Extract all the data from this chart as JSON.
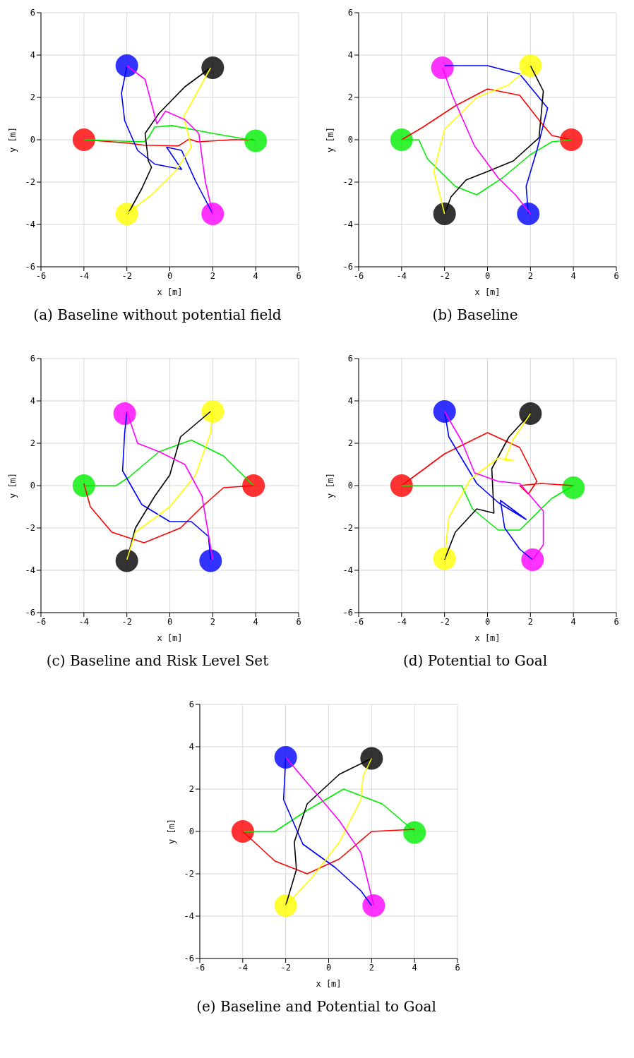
{
  "chart_data": [
    {
      "type": "line",
      "title": "(a) Baseline without potential field",
      "xlabel": "x [m]",
      "ylabel": "y [m]",
      "xlim": [
        -6,
        6
      ],
      "ylim": [
        -6,
        6
      ],
      "xticks": [
        -6,
        -4,
        -2,
        0,
        2,
        4,
        6
      ],
      "yticks": [
        -6,
        -4,
        -2,
        0,
        2,
        4,
        6
      ],
      "grid": true,
      "series": [
        {
          "color": "#ff0000",
          "x": [
            -4,
            -2,
            -1.2,
            0.4,
            0.9,
            1.3,
            2.9,
            3.9
          ],
          "values": [
            0,
            -0.15,
            -0.26,
            -0.29,
            0.03,
            -0.1,
            0,
            0
          ]
        },
        {
          "color": "#00ee00",
          "x": [
            4,
            2,
            0.1,
            -0.7,
            -1,
            -1.2,
            -4
          ],
          "values": [
            -0.05,
            0.3,
            0.67,
            0.6,
            0.1,
            -0.1,
            0
          ]
        },
        {
          "color": "#0000ff",
          "x": [
            -2,
            -2.25,
            -2.1,
            -1.5,
            -0.7,
            0.55,
            -0.15,
            0.55,
            1.2,
            2
          ],
          "values": [
            3.45,
            2.2,
            0.9,
            -0.5,
            -1.15,
            -1.4,
            -0.35,
            -0.5,
            -1.95,
            -3.5
          ]
        },
        {
          "color": "#000000",
          "x": [
            1.9,
            0.7,
            -0.5,
            -1.15,
            -1,
            -0.85,
            -1.3,
            -1.95
          ],
          "values": [
            3.4,
            2.5,
            1.25,
            0.3,
            -1,
            -1.3,
            -2.3,
            -3.5
          ]
        },
        {
          "color": "#ffff00",
          "x": [
            -2,
            -0.85,
            0.25,
            1,
            0.65,
            0.9,
            1.9
          ],
          "values": [
            -3.5,
            -2.6,
            -1.5,
            -0.35,
            1.1,
            1.55,
            3.4
          ]
        },
        {
          "color": "#ff00ff",
          "x": [
            -2,
            -1.15,
            -0.6,
            -0.2,
            0.7,
            1.35,
            1.65,
            2
          ],
          "values": [
            3.5,
            2.85,
            0.75,
            1.35,
            0.95,
            0.3,
            -1.95,
            -3.5
          ]
        },
        {
          "type": "scatter",
          "marker": "circle",
          "x": [
            -2,
            2,
            -4,
            4,
            -2,
            2
          ],
          "values": [
            3.5,
            3.4,
            0,
            -0.05,
            -3.5,
            -3.5
          ],
          "colors": [
            "#0000ff",
            "#000000",
            "#ff0000",
            "#00ee00",
            "#ffff00",
            "#ff00ff"
          ]
        }
      ]
    },
    {
      "type": "line",
      "title": "(b) Baseline",
      "xlabel": "x [m]",
      "ylabel": "y [m]",
      "xlim": [
        -6,
        6
      ],
      "ylim": [
        -6,
        6
      ],
      "xticks": [
        -6,
        -4,
        -2,
        0,
        2,
        4,
        6
      ],
      "yticks": [
        -6,
        -4,
        -2,
        0,
        2,
        4,
        6
      ],
      "grid": true,
      "series": [
        {
          "color": "#ff0000",
          "x": [
            -4,
            -3,
            -1.5,
            0,
            1.5,
            2.5,
            3,
            3.9
          ],
          "values": [
            0,
            0.6,
            1.6,
            2.4,
            2.1,
            0.8,
            0.2,
            0
          ]
        },
        {
          "color": "#00ee00",
          "x": [
            3.9,
            3,
            2,
            0.7,
            -0.5,
            -1.5,
            -2.8,
            -3.2,
            -4
          ],
          "values": [
            0,
            -0.1,
            -0.7,
            -1.8,
            -2.6,
            -2.2,
            -0.9,
            0,
            0
          ]
        },
        {
          "color": "#0000ff",
          "x": [
            1.9,
            1.8,
            2.3,
            2.8,
            1.5,
            0,
            -2
          ],
          "values": [
            -3.5,
            -2.2,
            -0.5,
            1.5,
            3.1,
            3.5,
            3.5
          ]
        },
        {
          "color": "#000000",
          "x": [
            2,
            2.6,
            2.4,
            1.2,
            0,
            -1,
            -1.7,
            -2
          ],
          "values": [
            3.5,
            2.3,
            0.1,
            -1,
            -1.5,
            -1.9,
            -2.7,
            -3.5
          ]
        },
        {
          "color": "#ffff00",
          "x": [
            -2,
            -2.5,
            -2,
            -0.5,
            1,
            2
          ],
          "values": [
            -3.5,
            -1.5,
            0.5,
            2,
            2.6,
            3.5
          ]
        },
        {
          "color": "#ff00ff",
          "x": [
            -2.1,
            -1.6,
            -0.6,
            0.5,
            1.3,
            2
          ],
          "values": [
            3.4,
            2,
            -0.3,
            -1.8,
            -2.6,
            -3.5
          ]
        },
        {
          "type": "scatter",
          "marker": "circle",
          "x": [
            -2.1,
            2,
            -4,
            3.9,
            -2,
            1.9
          ],
          "values": [
            3.4,
            3.5,
            0,
            0,
            -3.5,
            -3.5
          ],
          "colors": [
            "#ff00ff",
            "#ffff00",
            "#00ee00",
            "#ff0000",
            "#000000",
            "#0000ff"
          ]
        }
      ]
    },
    {
      "type": "line",
      "title": "(c) Baseline and Risk Level Set",
      "xlabel": "x [m]",
      "ylabel": "y [m]",
      "xlim": [
        -6,
        6
      ],
      "ylim": [
        -6,
        6
      ],
      "xticks": [
        -6,
        -4,
        -2,
        0,
        2,
        4,
        6
      ],
      "yticks": [
        -6,
        -4,
        -2,
        0,
        2,
        4,
        6
      ],
      "grid": true,
      "series": [
        {
          "color": "#00ee00",
          "x": [
            3.9,
            2.5,
            1,
            -0.5,
            -1.9,
            -2.5,
            -4
          ],
          "values": [
            0,
            1.4,
            2.15,
            1.6,
            0.4,
            0,
            0
          ]
        },
        {
          "color": "#ff0000",
          "x": [
            3.9,
            2.5,
            1.5,
            0.5,
            -1.2,
            -2.7,
            -3.7,
            -4
          ],
          "values": [
            0,
            -0.1,
            -1,
            -2,
            -2.7,
            -2.2,
            -1,
            0.1
          ]
        },
        {
          "color": "#0000ff",
          "x": [
            1.9,
            1.8,
            1,
            0,
            -1.3,
            -2.2,
            -2.1,
            -2
          ],
          "values": [
            -3.5,
            -2.4,
            -1.7,
            -1.7,
            -0.9,
            0.7,
            2.5,
            3.5
          ]
        },
        {
          "color": "#000000",
          "x": [
            -2,
            -1.6,
            -0.7,
            0,
            0.5,
            1.9
          ],
          "values": [
            -3.5,
            -2,
            -0.5,
            0.5,
            2.3,
            3.5
          ]
        },
        {
          "color": "#ffff00",
          "x": [
            -2,
            -1.6,
            0,
            1.2,
            1.9,
            2
          ],
          "values": [
            -3.5,
            -2.2,
            -1,
            0.5,
            2.5,
            3.5
          ]
        },
        {
          "color": "#ff00ff",
          "x": [
            -2,
            -1.5,
            -0.5,
            0.7,
            1.5,
            1.8,
            2
          ],
          "values": [
            3.5,
            2,
            1.6,
            1,
            -0.5,
            -2.3,
            -3.5
          ]
        },
        {
          "type": "scatter",
          "marker": "circle",
          "x": [
            -2.1,
            2,
            -4,
            3.9,
            -2,
            1.9
          ],
          "values": [
            3.4,
            3.5,
            0,
            0,
            -3.55,
            -3.55
          ],
          "colors": [
            "#ff00ff",
            "#ffff00",
            "#00ee00",
            "#ff0000",
            "#000000",
            "#0000ff"
          ]
        }
      ]
    },
    {
      "type": "line",
      "title": "(d) Potential to Goal",
      "xlabel": "x [m]",
      "ylabel": "y [m]",
      "xlim": [
        -6,
        6
      ],
      "ylim": [
        -6,
        6
      ],
      "xticks": [
        -6,
        -4,
        -2,
        0,
        2,
        4,
        6
      ],
      "yticks": [
        -6,
        -4,
        -2,
        0,
        2,
        4,
        6
      ],
      "grid": true,
      "series": [
        {
          "color": "#ff0000",
          "x": [
            -4,
            -2,
            0,
            1.5,
            2.3,
            1.9,
            1.5,
            2.5,
            4
          ],
          "values": [
            0,
            1.5,
            2.5,
            1.8,
            0.2,
            -0.4,
            0,
            0.1,
            0
          ]
        },
        {
          "color": "#00ee00",
          "x": [
            4,
            3,
            1.5,
            0.5,
            -0.7,
            -1.2,
            -4
          ],
          "values": [
            0,
            -0.6,
            -2.1,
            -2.1,
            -1.1,
            0,
            0
          ]
        },
        {
          "color": "#0000ff",
          "x": [
            -2,
            -1.8,
            -0.5,
            0.5,
            1.8,
            0.6,
            0.8,
            1.5,
            2.1
          ],
          "values": [
            3.5,
            2.3,
            0.1,
            -0.8,
            -1.6,
            -0.7,
            -2,
            -3,
            -3.5
          ]
        },
        {
          "color": "#000000",
          "x": [
            2,
            1,
            0.2,
            0.3,
            -0.5,
            -1.5,
            -2
          ],
          "values": [
            3.4,
            2.3,
            0.8,
            -1.3,
            -1.1,
            -2.2,
            -3.5
          ]
        },
        {
          "color": "#ffff00",
          "x": [
            -2,
            -1.8,
            -0.8,
            0.5,
            1.2,
            0.8,
            1.2,
            2
          ],
          "values": [
            -3.45,
            -1.5,
            0.3,
            1.3,
            1.2,
            1.2,
            2.2,
            3.4
          ]
        },
        {
          "color": "#ff00ff",
          "x": [
            -2,
            -1.2,
            -0.6,
            0.5,
            1.5,
            2.6,
            2.6,
            2.1
          ],
          "values": [
            3.5,
            2.1,
            0.6,
            0.2,
            0.1,
            -1.2,
            -2.8,
            -3.5
          ]
        },
        {
          "type": "scatter",
          "marker": "circle",
          "x": [
            -2,
            2,
            -4,
            4,
            -2,
            2.1
          ],
          "values": [
            3.5,
            3.4,
            0,
            -0.1,
            -3.45,
            -3.5
          ],
          "colors": [
            "#0000ff",
            "#000000",
            "#ff0000",
            "#00ee00",
            "#ffff00",
            "#ff00ff"
          ]
        }
      ]
    },
    {
      "type": "line",
      "title": "(e) Baseline and Potential to Goal",
      "xlabel": "x [m]",
      "ylabel": "y [m]",
      "xlim": [
        -6,
        6
      ],
      "ylim": [
        -6,
        6
      ],
      "xticks": [
        -6,
        -4,
        -2,
        0,
        2,
        4,
        6
      ],
      "yticks": [
        -6,
        -4,
        -2,
        0,
        2,
        4,
        6
      ],
      "grid": true,
      "series": [
        {
          "color": "#00ee00",
          "x": [
            4,
            2.5,
            0.7,
            -1,
            -2.5,
            -4
          ],
          "values": [
            0,
            1.3,
            2,
            1,
            0,
            0
          ]
        },
        {
          "color": "#ff0000",
          "x": [
            4,
            2,
            0.5,
            -1,
            -2.5,
            -4
          ],
          "values": [
            0.1,
            0,
            -1.3,
            -2,
            -1.4,
            0
          ]
        },
        {
          "color": "#0000ff",
          "x": [
            -2,
            -2.1,
            -1.2,
            0.3,
            1.5,
            2
          ],
          "values": [
            3.5,
            1.5,
            -0.6,
            -1.7,
            -2.8,
            -3.5
          ]
        },
        {
          "color": "#000000",
          "x": [
            2,
            0.5,
            -1,
            -1.6,
            -1.5,
            -2
          ],
          "values": [
            3.45,
            2.7,
            1.3,
            -0.5,
            -1.8,
            -3.5
          ]
        },
        {
          "color": "#ffff00",
          "x": [
            -2,
            -0.8,
            0.5,
            1.5,
            1.6,
            2
          ],
          "values": [
            -3.5,
            -2.2,
            -0.5,
            1.5,
            2.6,
            3.45
          ]
        },
        {
          "color": "#ff00ff",
          "x": [
            -2,
            -1,
            0.5,
            1.5,
            2.1
          ],
          "values": [
            3.5,
            2.3,
            0.5,
            -1,
            -3.5
          ]
        },
        {
          "type": "scatter",
          "marker": "circle",
          "x": [
            -2,
            2,
            -4,
            4,
            -2,
            2.1
          ],
          "values": [
            3.5,
            3.45,
            0,
            -0.05,
            -3.5,
            -3.5
          ],
          "colors": [
            "#0000ff",
            "#000000",
            "#ff0000",
            "#00ee00",
            "#ffff00",
            "#ff00ff"
          ]
        }
      ]
    }
  ]
}
